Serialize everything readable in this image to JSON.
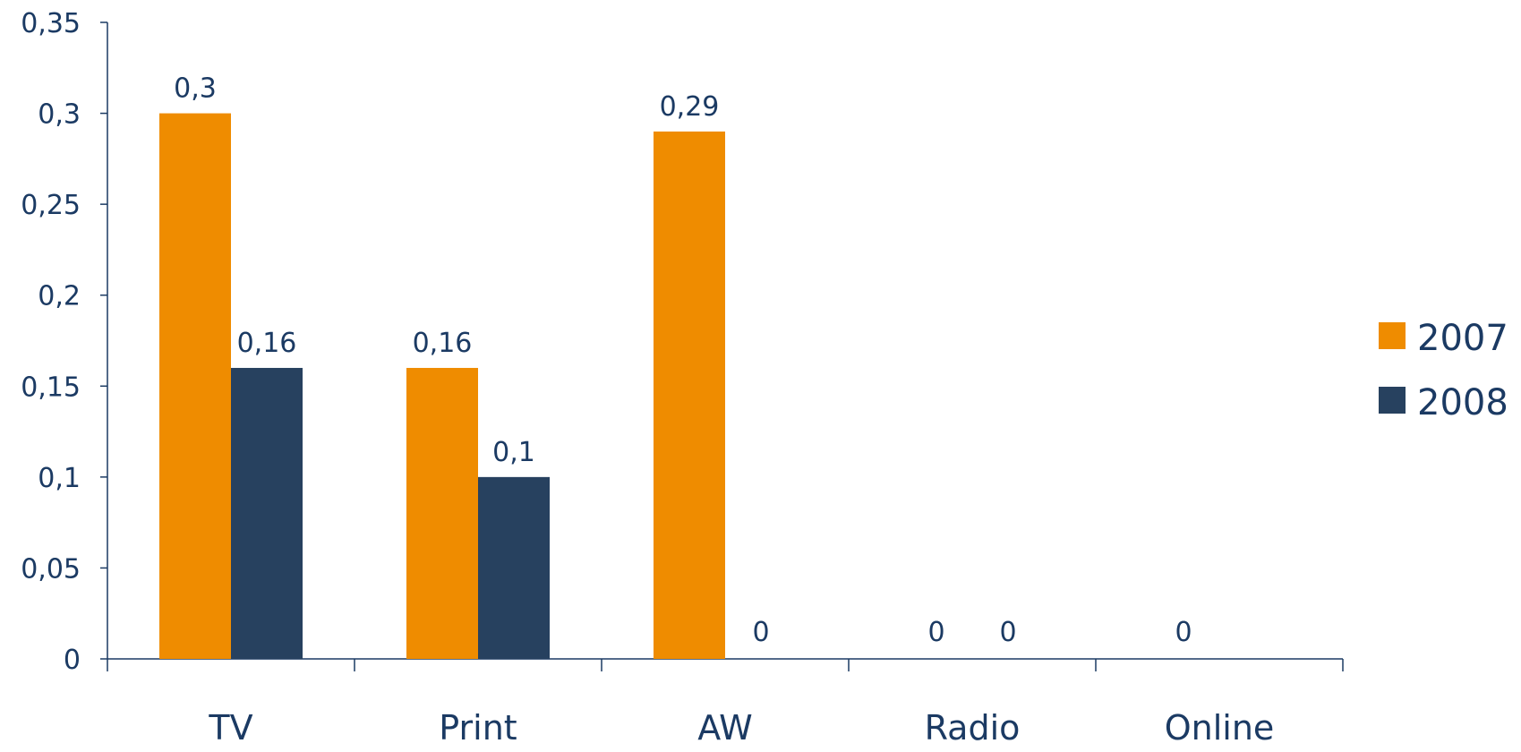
{
  "chart_data": {
    "type": "bar",
    "categories": [
      "TV",
      "Print",
      "AW",
      "Radio",
      "Online"
    ],
    "series": [
      {
        "name": "2007",
        "color": "#ef8c00",
        "values": [
          0.3,
          0.16,
          0.29,
          null,
          null
        ],
        "labels": [
          "0,3",
          "0,16",
          "0,29",
          "0",
          "0"
        ]
      },
      {
        "name": "2008",
        "color": "#27415f",
        "values": [
          0.16,
          0.1,
          0,
          0,
          null
        ],
        "labels": [
          "0,16",
          "0,1",
          "0",
          "0",
          ""
        ]
      }
    ],
    "ylim": [
      0,
      0.35
    ],
    "yticks": [
      0,
      0.05,
      0.1,
      0.15,
      0.2,
      0.25,
      0.3,
      0.35
    ],
    "ytick_labels": [
      "0",
      "0,05",
      "0,1",
      "0,15",
      "0,2",
      "0,25",
      "0,3",
      "0,35"
    ],
    "grid": false,
    "legend_position": "right",
    "axis_color": "#1b3a63"
  }
}
